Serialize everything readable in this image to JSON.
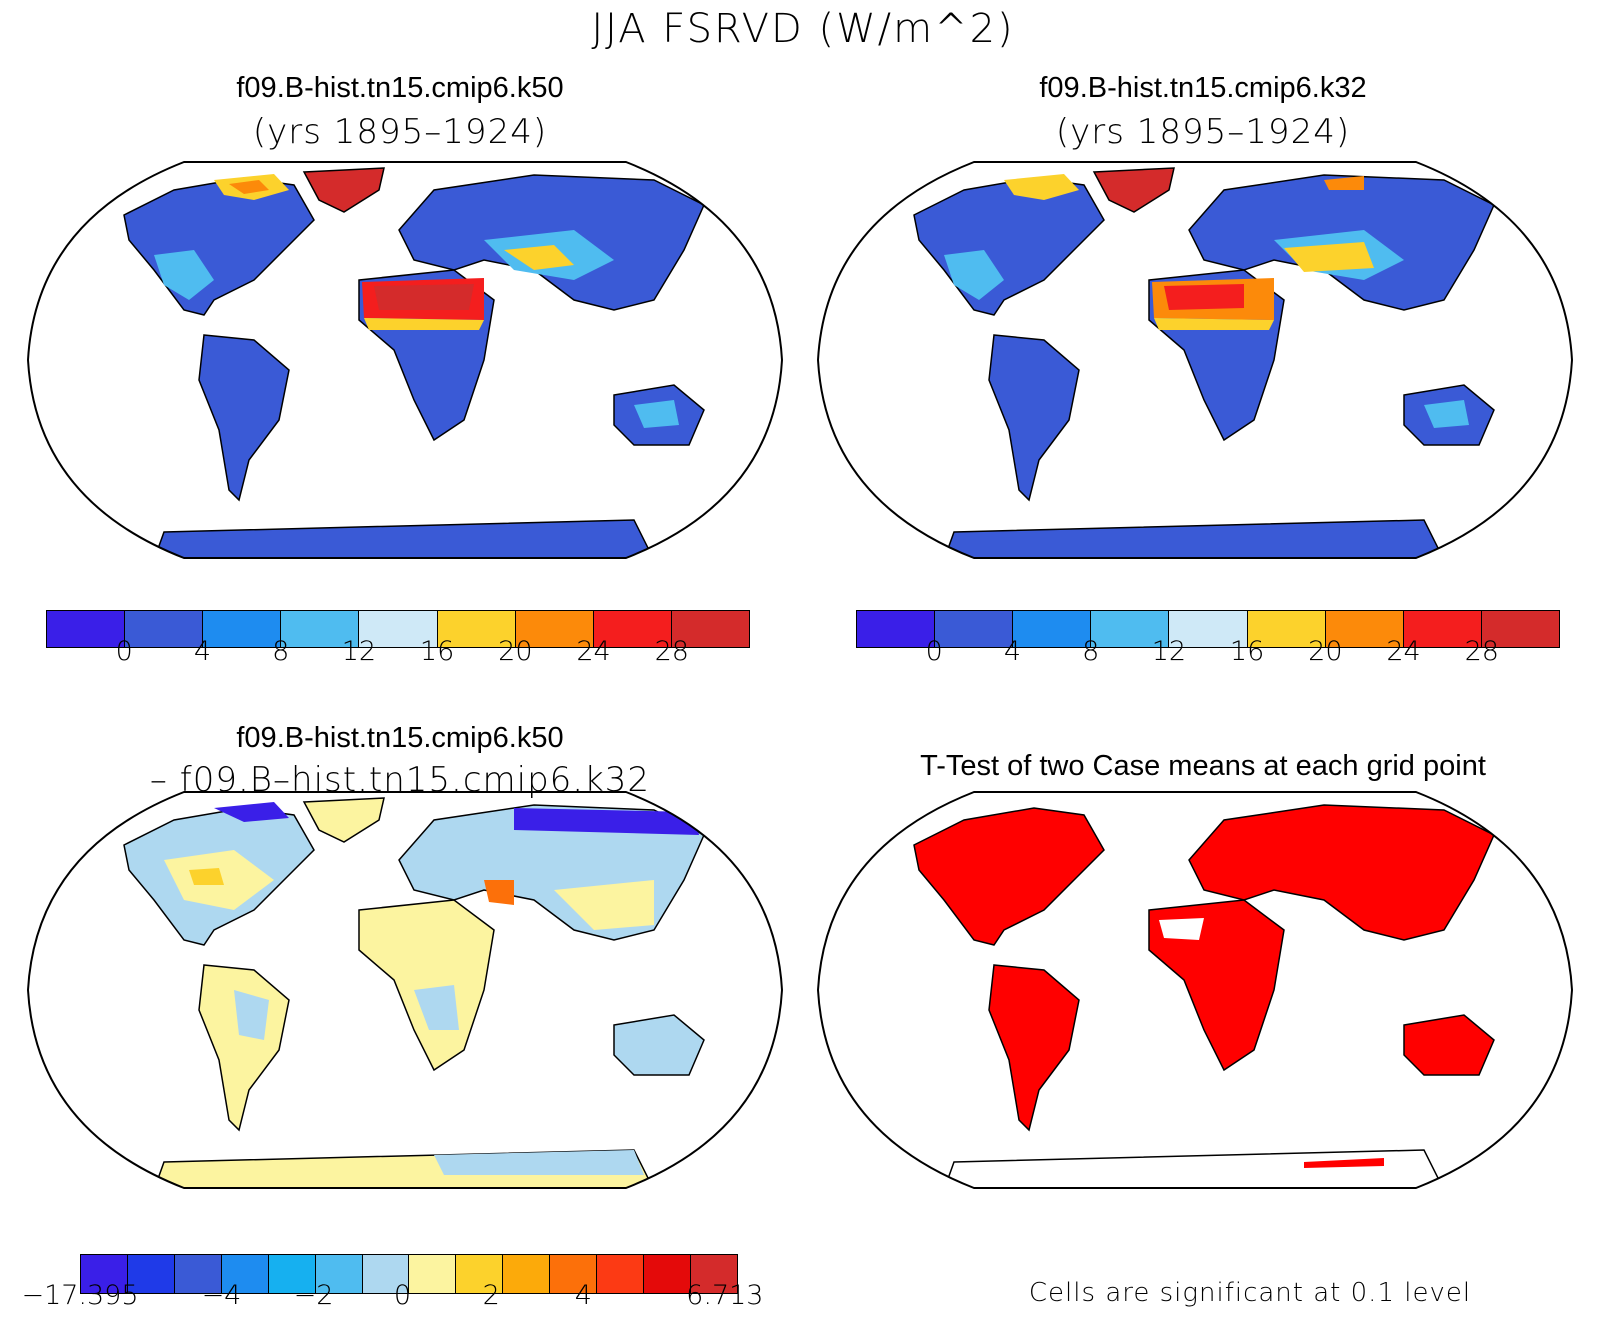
{
  "title": "JJA FSRVD (W/m^2)",
  "panels": [
    {
      "title": "f09.B-hist.tn15.cmip6.k50",
      "subtitle": "(yrs 1895–1924)",
      "type": "absolute"
    },
    {
      "title": "f09.B-hist.tn15.cmip6.k32",
      "subtitle": "(yrs 1895–1924)",
      "type": "absolute"
    },
    {
      "title": "f09.B-hist.tn15.cmip6.k50",
      "subtitle": "– f09.B–hist.tn15.cmip6.k32",
      "type": "difference"
    },
    {
      "title": "T-Test of two Case means at each grid point",
      "subtitle": "",
      "type": "significance"
    }
  ],
  "colorbar_main": {
    "colors": [
      "#3a1fe8",
      "#3a5ad6",
      "#1e8cf0",
      "#4fbcf0",
      "#cfe9f7",
      "#fcd22c",
      "#fc8a0a",
      "#f41e1e",
      "#d42b2b"
    ],
    "labels": [
      "0",
      "4",
      "8",
      "12",
      "16",
      "20",
      "24",
      "28"
    ]
  },
  "colorbar_diff": {
    "colors": [
      "#3a1fe8",
      "#1f3ae8",
      "#3a5ad6",
      "#1e8cf0",
      "#16b0f0",
      "#4fbcf0",
      "#aed8f0",
      "#fcf4a0",
      "#fcd22c",
      "#fcaa0a",
      "#fc700a",
      "#fc3a14",
      "#e40a0a",
      "#d42b2b"
    ],
    "labels": [
      "−17.395",
      "−4",
      "−2",
      "0",
      "2",
      "4",
      "6.713"
    ]
  },
  "significance_note": "Cells are significant at 0.1 level",
  "colors": {
    "significant": "#ff0000",
    "land_outline": "#000000"
  }
}
